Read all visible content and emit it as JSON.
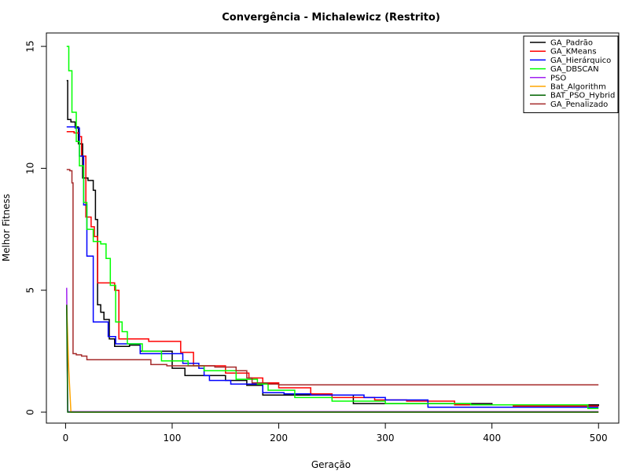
{
  "chart_data": {
    "type": "line",
    "title": "Convergência - Michalewicz (Restrito)",
    "xlabel": "Geração",
    "ylabel": "Melhor Fitness",
    "xlim": [
      -18,
      519
    ],
    "ylim": [
      -0.45,
      15.55
    ],
    "xticks": [
      0,
      100,
      200,
      300,
      400,
      500
    ],
    "yticks": [
      0,
      5,
      10,
      15
    ],
    "legend_position": "top-right",
    "series": [
      {
        "name": "GA_Padrão",
        "color": "#000000",
        "step": true,
        "points": [
          [
            1,
            13.6
          ],
          [
            2,
            12.0
          ],
          [
            5,
            11.9
          ],
          [
            9,
            11.7
          ],
          [
            12,
            11.0
          ],
          [
            16,
            9.6
          ],
          [
            21,
            9.5
          ],
          [
            26,
            9.1
          ],
          [
            28,
            7.9
          ],
          [
            30,
            4.4
          ],
          [
            33,
            4.1
          ],
          [
            36,
            3.8
          ],
          [
            41,
            3.0
          ],
          [
            46,
            2.7
          ],
          [
            60,
            2.75
          ],
          [
            70,
            2.5
          ],
          [
            100,
            1.8
          ],
          [
            112,
            1.5
          ],
          [
            150,
            1.3
          ],
          [
            170,
            1.1
          ],
          [
            185,
            0.7
          ],
          [
            270,
            0.35
          ],
          [
            400,
            0.3
          ],
          [
            500,
            0.25
          ]
        ]
      },
      {
        "name": "GA_KMeans",
        "color": "#ff0000",
        "step": true,
        "points": [
          [
            1,
            11.5
          ],
          [
            8,
            11.45
          ],
          [
            13,
            11.3
          ],
          [
            15,
            10.5
          ],
          [
            19,
            8.0
          ],
          [
            24,
            7.6
          ],
          [
            27,
            7.2
          ],
          [
            30,
            5.3
          ],
          [
            46,
            5.0
          ],
          [
            50,
            3.0
          ],
          [
            78,
            2.9
          ],
          [
            108,
            2.45
          ],
          [
            120,
            1.9
          ],
          [
            150,
            1.6
          ],
          [
            172,
            1.4
          ],
          [
            185,
            1.2
          ],
          [
            200,
            1.0
          ],
          [
            230,
            0.75
          ],
          [
            250,
            0.6
          ],
          [
            290,
            0.5
          ],
          [
            320,
            0.45
          ],
          [
            365,
            0.3
          ],
          [
            420,
            0.25
          ],
          [
            500,
            0.25
          ]
        ]
      },
      {
        "name": "GA_Hierárquico",
        "color": "#0000ff",
        "step": true,
        "points": [
          [
            1,
            11.7
          ],
          [
            9,
            11.65
          ],
          [
            13,
            10.5
          ],
          [
            17,
            8.5
          ],
          [
            20,
            6.4
          ],
          [
            26,
            3.7
          ],
          [
            40,
            3.1
          ],
          [
            47,
            2.8
          ],
          [
            70,
            2.4
          ],
          [
            110,
            2.0
          ],
          [
            125,
            1.8
          ],
          [
            130,
            1.5
          ],
          [
            135,
            1.3
          ],
          [
            155,
            1.15
          ],
          [
            185,
            0.8
          ],
          [
            205,
            0.75
          ],
          [
            230,
            0.7
          ],
          [
            280,
            0.6
          ],
          [
            300,
            0.5
          ],
          [
            340,
            0.2
          ],
          [
            500,
            0.2
          ]
        ]
      },
      {
        "name": "GA_DBSCAN",
        "color": "#00ff00",
        "step": true,
        "points": [
          [
            1,
            15.0
          ],
          [
            3,
            14.0
          ],
          [
            6,
            12.3
          ],
          [
            10,
            11.1
          ],
          [
            13,
            10.1
          ],
          [
            17,
            8.6
          ],
          [
            20,
            7.5
          ],
          [
            26,
            7.0
          ],
          [
            33,
            6.9
          ],
          [
            38,
            6.3
          ],
          [
            42,
            5.2
          ],
          [
            47,
            3.7
          ],
          [
            53,
            3.3
          ],
          [
            58,
            2.8
          ],
          [
            72,
            2.5
          ],
          [
            82,
            2.5
          ],
          [
            90,
            2.1
          ],
          [
            115,
            1.9
          ],
          [
            130,
            1.7
          ],
          [
            160,
            1.35
          ],
          [
            180,
            1.15
          ],
          [
            190,
            0.9
          ],
          [
            215,
            0.6
          ],
          [
            250,
            0.45
          ],
          [
            300,
            0.35
          ],
          [
            380,
            0.3
          ],
          [
            490,
            0.15
          ],
          [
            500,
            0.15
          ]
        ]
      },
      {
        "name": "PSO",
        "color": "#a020f0",
        "step": false,
        "points": [
          [
            1,
            5.1
          ],
          [
            2,
            0.02
          ],
          [
            500,
            0.02
          ]
        ]
      },
      {
        "name": "Bat_Algorithm",
        "color": "#ffa500",
        "step": false,
        "points": [
          [
            1,
            4.4
          ],
          [
            3,
            1.7
          ],
          [
            5,
            0.0
          ],
          [
            500,
            0.0
          ]
        ]
      },
      {
        "name": "BAT_PSO_Hybrid",
        "color": "#006400",
        "step": false,
        "points": [
          [
            1,
            4.4
          ],
          [
            2,
            0.0
          ],
          [
            500,
            0.0
          ]
        ]
      },
      {
        "name": "GA_Penalizado",
        "color": "#a52a2a",
        "step": true,
        "points": [
          [
            1,
            9.95
          ],
          [
            4,
            9.9
          ],
          [
            6,
            9.4
          ],
          [
            7,
            2.4
          ],
          [
            10,
            2.35
          ],
          [
            15,
            2.3
          ],
          [
            20,
            2.15
          ],
          [
            80,
            1.95
          ],
          [
            95,
            1.9
          ],
          [
            140,
            1.85
          ],
          [
            160,
            1.7
          ],
          [
            170,
            1.4
          ],
          [
            175,
            1.2
          ],
          [
            190,
            1.15
          ],
          [
            200,
            1.12
          ],
          [
            500,
            1.12
          ]
        ]
      }
    ]
  }
}
